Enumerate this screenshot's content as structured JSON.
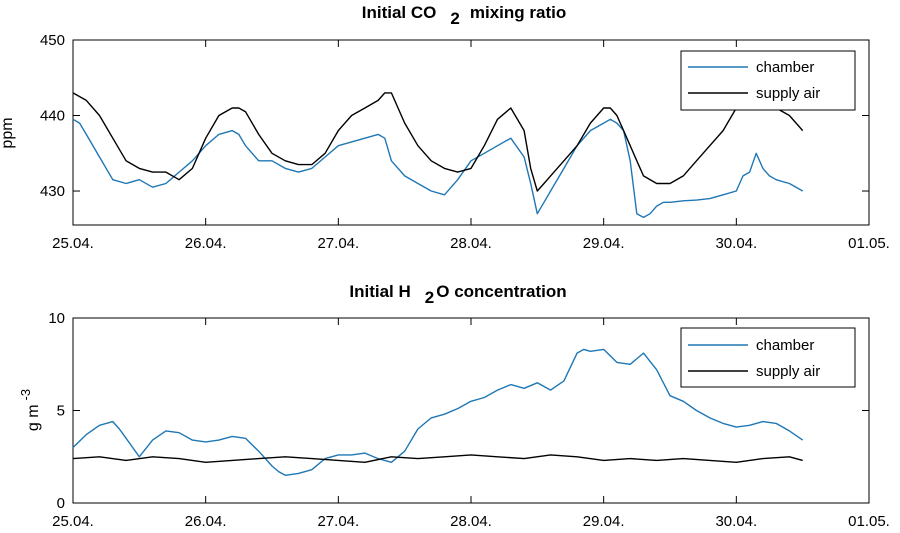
{
  "chart_data": [
    {
      "type": "line",
      "title": "Initial CO",
      "title_sub": "2",
      "title_rest": "mixing ratio",
      "ylabel": "ppm",
      "xlabel": "",
      "ylim": [
        425.5,
        450
      ],
      "yticks": [
        430,
        440,
        450
      ],
      "x_ticks": [
        "25.04.",
        "26.04.",
        "27.04.",
        "28.04.",
        "29.04.",
        "30.04.",
        "01.05."
      ],
      "xlim": [
        0,
        6
      ],
      "legend": "top-right",
      "grid": false,
      "series": [
        {
          "name": "chamber",
          "color": "#1f77b4",
          "x": [
            0,
            0.05,
            0.1,
            0.2,
            0.3,
            0.4,
            0.5,
            0.6,
            0.7,
            0.8,
            0.9,
            1,
            1.1,
            1.2,
            1.25,
            1.3,
            1.4,
            1.5,
            1.6,
            1.7,
            1.8,
            1.9,
            2,
            2.1,
            2.2,
            2.3,
            2.35,
            2.4,
            2.5,
            2.6,
            2.7,
            2.8,
            2.9,
            3,
            3.1,
            3.2,
            3.3,
            3.4,
            3.45,
            3.5,
            3.55,
            3.6,
            3.7,
            3.8,
            3.9,
            4,
            4.05,
            4.1,
            4.15,
            4.2,
            4.25,
            4.3,
            4.35,
            4.4,
            4.45,
            4.5,
            4.6,
            4.7,
            4.8,
            4.9,
            5,
            5.05,
            5.1,
            5.15,
            5.2,
            5.25,
            5.3,
            5.4,
            5.5
          ],
          "y": [
            439.5,
            439,
            437.5,
            434.5,
            431.5,
            431,
            431.5,
            430.5,
            431,
            432.5,
            434,
            436,
            437.5,
            438,
            437.5,
            436,
            434,
            434,
            433,
            432.5,
            433,
            434.5,
            436,
            436.5,
            437,
            437.5,
            437,
            434,
            432,
            431,
            430,
            429.5,
            431.5,
            434,
            435,
            436,
            437,
            434.5,
            431,
            427,
            428.5,
            430,
            433,
            436,
            438,
            439,
            439.5,
            439,
            438,
            434,
            427,
            426.5,
            427,
            428,
            428.5,
            428.5,
            428.7,
            428.8,
            429,
            429.5,
            430,
            432,
            432.5,
            435,
            433,
            432,
            431.5,
            431,
            430
          ]
        },
        {
          "name": "supply air",
          "color": "#000000",
          "x": [
            0,
            0.1,
            0.2,
            0.3,
            0.4,
            0.5,
            0.6,
            0.7,
            0.8,
            0.9,
            1,
            1.1,
            1.2,
            1.25,
            1.3,
            1.4,
            1.5,
            1.6,
            1.7,
            1.8,
            1.9,
            2,
            2.1,
            2.2,
            2.3,
            2.35,
            2.4,
            2.5,
            2.6,
            2.7,
            2.8,
            2.9,
            3,
            3.1,
            3.2,
            3.3,
            3.4,
            3.45,
            3.5,
            3.55,
            3.6,
            3.7,
            3.8,
            3.9,
            4,
            4.05,
            4.1,
            4.15,
            4.2,
            4.25,
            4.3,
            4.4,
            4.5,
            4.6,
            4.7,
            4.8,
            4.9,
            5,
            5.1,
            5.2,
            5.3,
            5.4,
            5.5
          ],
          "y": [
            443,
            442,
            440,
            437,
            434,
            433,
            432.5,
            432.5,
            431.5,
            433,
            437,
            440,
            441,
            441,
            440.5,
            437.5,
            435,
            434,
            433.5,
            433.5,
            435,
            438,
            440,
            441,
            442,
            443,
            443,
            439,
            436,
            434,
            433,
            432.5,
            433,
            436,
            439.5,
            441,
            438,
            433,
            430,
            431,
            432,
            434,
            436,
            439,
            441,
            441,
            440,
            438,
            436,
            434,
            432,
            431,
            431,
            432,
            434,
            436,
            438,
            441,
            443,
            442,
            441,
            440,
            438
          ]
        }
      ]
    },
    {
      "type": "line",
      "title": "Initial H",
      "title_sub": "2",
      "title_rest": "O concentration",
      "ylabel": "g m",
      "ylabel_sup": "-3",
      "xlabel": "",
      "ylim": [
        0,
        10
      ],
      "yticks": [
        0,
        5,
        10
      ],
      "x_ticks": [
        "25.04.",
        "26.04.",
        "27.04.",
        "28.04.",
        "29.04.",
        "30.04.",
        "01.05."
      ],
      "xlim": [
        0,
        6
      ],
      "legend": "top-right",
      "grid": false,
      "series": [
        {
          "name": "chamber",
          "color": "#1f77b4",
          "x": [
            0,
            0.1,
            0.2,
            0.3,
            0.35,
            0.4,
            0.5,
            0.6,
            0.7,
            0.8,
            0.9,
            1,
            1.1,
            1.2,
            1.3,
            1.4,
            1.5,
            1.55,
            1.6,
            1.7,
            1.8,
            1.9,
            2,
            2.1,
            2.2,
            2.3,
            2.4,
            2.5,
            2.6,
            2.7,
            2.8,
            2.9,
            3,
            3.1,
            3.2,
            3.3,
            3.4,
            3.5,
            3.6,
            3.7,
            3.8,
            3.85,
            3.9,
            4,
            4.1,
            4.2,
            4.3,
            4.4,
            4.5,
            4.6,
            4.7,
            4.8,
            4.9,
            5,
            5.1,
            5.2,
            5.3,
            5.4,
            5.5
          ],
          "y": [
            3,
            3.7,
            4.2,
            4.4,
            4,
            3.5,
            2.5,
            3.4,
            3.9,
            3.8,
            3.4,
            3.3,
            3.4,
            3.6,
            3.5,
            2.8,
            2,
            1.7,
            1.5,
            1.6,
            1.8,
            2.4,
            2.6,
            2.6,
            2.7,
            2.4,
            2.2,
            2.8,
            4,
            4.6,
            4.8,
            5.1,
            5.5,
            5.7,
            6.1,
            6.4,
            6.2,
            6.5,
            6.1,
            6.6,
            8.1,
            8.3,
            8.2,
            8.3,
            7.6,
            7.5,
            8.1,
            7.2,
            5.8,
            5.5,
            5,
            4.6,
            4.3,
            4.1,
            4.2,
            4.4,
            4.3,
            3.9,
            3.4
          ]
        },
        {
          "name": "supply air",
          "color": "#000000",
          "x": [
            0,
            0.2,
            0.4,
            0.6,
            0.8,
            1,
            1.2,
            1.4,
            1.6,
            1.8,
            2,
            2.2,
            2.4,
            2.6,
            2.8,
            3,
            3.2,
            3.4,
            3.6,
            3.8,
            4,
            4.2,
            4.4,
            4.6,
            4.8,
            5,
            5.2,
            5.4,
            5.5
          ],
          "y": [
            2.4,
            2.5,
            2.3,
            2.5,
            2.4,
            2.2,
            2.3,
            2.4,
            2.5,
            2.4,
            2.3,
            2.2,
            2.5,
            2.4,
            2.5,
            2.6,
            2.5,
            2.4,
            2.6,
            2.5,
            2.3,
            2.4,
            2.3,
            2.4,
            2.3,
            2.2,
            2.4,
            2.5,
            2.3
          ]
        }
      ]
    }
  ]
}
